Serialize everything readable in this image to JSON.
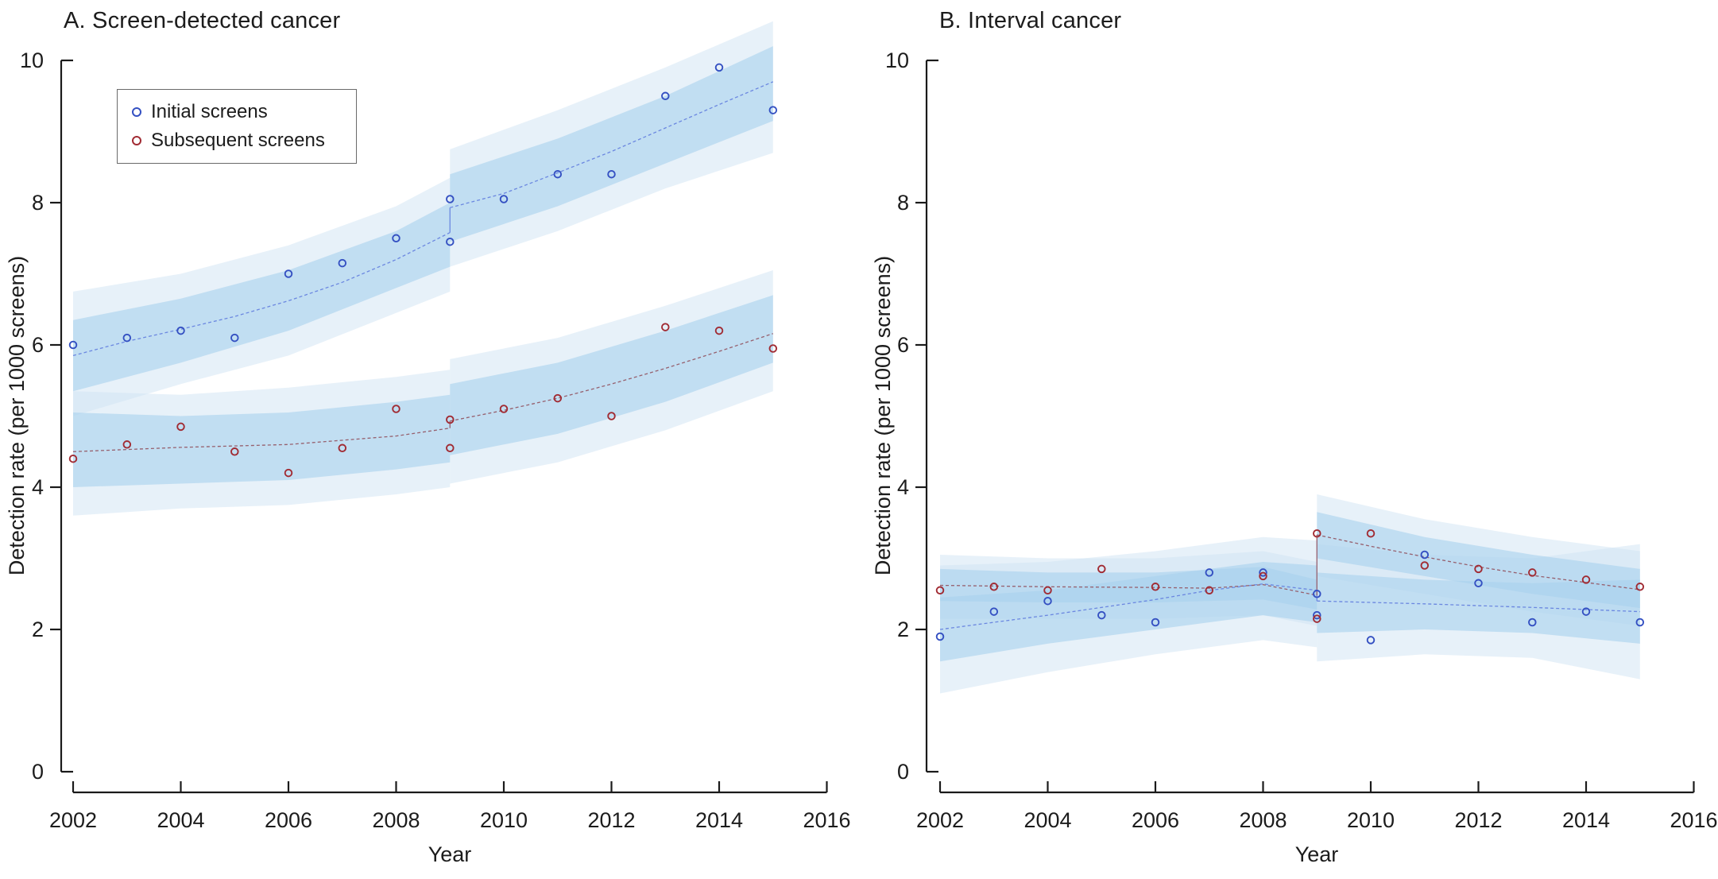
{
  "colors": {
    "initial_marker": "#3450c2",
    "subsequent_marker": "#a12b33",
    "initial_trend": "#6b87e0",
    "subsequent_trend": "#96606e",
    "band_inner": "#a9d2ee",
    "band_outer": "#cfe4f4",
    "axis": "#1a1a1a"
  },
  "legend": {
    "items": [
      {
        "label": "Initial screens",
        "series": "initial"
      },
      {
        "label": "Subsequent screens",
        "series": "subsequent"
      }
    ]
  },
  "chart_data": [
    {
      "type": "scatter",
      "title": "A. Screen-detected cancer",
      "xlabel": "Year",
      "ylabel": "Detection rate (per 1000 screens)",
      "xlim": [
        2002,
        2016
      ],
      "ylim": [
        0,
        10
      ],
      "xticks": [
        2002,
        2004,
        2006,
        2008,
        2010,
        2012,
        2014,
        2016
      ],
      "yticks": [
        0,
        2,
        4,
        6,
        8,
        10
      ],
      "legend_position": "top-left",
      "grid": false,
      "jump_year": 2009,
      "series": [
        {
          "name": "Initial screens",
          "points": [
            [
              2002,
              6.0
            ],
            [
              2003,
              6.1
            ],
            [
              2004,
              6.2
            ],
            [
              2005,
              6.1
            ],
            [
              2006,
              7.0
            ],
            [
              2007,
              7.15
            ],
            [
              2008,
              7.5
            ],
            [
              2009,
              8.05
            ],
            [
              2009,
              7.45
            ],
            [
              2010,
              8.05
            ],
            [
              2011,
              8.4
            ],
            [
              2012,
              8.4
            ],
            [
              2013,
              9.5
            ],
            [
              2014,
              9.9
            ],
            [
              2015,
              9.3
            ]
          ],
          "trend_pre": [
            [
              2002,
              5.85
            ],
            [
              2003,
              6.05
            ],
            [
              2004,
              6.22
            ],
            [
              2005,
              6.4
            ],
            [
              2006,
              6.62
            ],
            [
              2007,
              6.88
            ],
            [
              2008,
              7.2
            ],
            [
              2009,
              7.58
            ]
          ],
          "trend_post": [
            [
              2009,
              7.93
            ],
            [
              2010,
              8.13
            ],
            [
              2011,
              8.42
            ],
            [
              2012,
              8.72
            ],
            [
              2013,
              9.05
            ],
            [
              2014,
              9.38
            ],
            [
              2015,
              9.7
            ]
          ],
          "band_inner_pre": {
            "x": [
              2002,
              2004,
              2006,
              2008,
              2009
            ],
            "lo": [
              5.35,
              5.75,
              6.2,
              6.8,
              7.1
            ],
            "hi": [
              6.35,
              6.65,
              7.05,
              7.6,
              8.0
            ]
          },
          "band_outer_pre": {
            "x": [
              2002,
              2004,
              2006,
              2008,
              2009
            ],
            "lo": [
              5.0,
              5.45,
              5.85,
              6.45,
              6.75
            ],
            "hi": [
              6.75,
              7.0,
              7.4,
              7.95,
              8.35
            ]
          },
          "band_inner_post": {
            "x": [
              2009,
              2011,
              2013,
              2015
            ],
            "lo": [
              7.45,
              7.95,
              8.55,
              9.15
            ],
            "hi": [
              8.4,
              8.9,
              9.5,
              10.2
            ]
          },
          "band_outer_post": {
            "x": [
              2009,
              2011,
              2013,
              2015
            ],
            "lo": [
              7.1,
              7.6,
              8.2,
              8.7
            ],
            "hi": [
              8.75,
              9.3,
              9.9,
              10.55
            ]
          }
        },
        {
          "name": "Subsequent screens",
          "points": [
            [
              2002,
              4.4
            ],
            [
              2003,
              4.6
            ],
            [
              2004,
              4.85
            ],
            [
              2005,
              4.5
            ],
            [
              2006,
              4.2
            ],
            [
              2007,
              4.55
            ],
            [
              2008,
              5.1
            ],
            [
              2009,
              4.95
            ],
            [
              2009,
              4.55
            ],
            [
              2010,
              5.1
            ],
            [
              2011,
              5.25
            ],
            [
              2012,
              5.0
            ],
            [
              2013,
              6.25
            ],
            [
              2014,
              6.2
            ],
            [
              2015,
              5.95
            ]
          ],
          "trend_pre": [
            [
              2002,
              4.5
            ],
            [
              2004,
              4.56
            ],
            [
              2006,
              4.6
            ],
            [
              2008,
              4.72
            ],
            [
              2009,
              4.83
            ]
          ],
          "trend_post": [
            [
              2009,
              4.93
            ],
            [
              2010,
              5.08
            ],
            [
              2011,
              5.25
            ],
            [
              2012,
              5.45
            ],
            [
              2013,
              5.67
            ],
            [
              2014,
              5.91
            ],
            [
              2015,
              6.16
            ]
          ],
          "band_inner_pre": {
            "x": [
              2002,
              2004,
              2006,
              2008,
              2009
            ],
            "lo": [
              4.0,
              4.05,
              4.1,
              4.25,
              4.35
            ],
            "hi": [
              5.05,
              5.0,
              5.05,
              5.2,
              5.3
            ]
          },
          "band_outer_pre": {
            "x": [
              2002,
              2004,
              2006,
              2008,
              2009
            ],
            "lo": [
              3.6,
              3.7,
              3.75,
              3.9,
              4.0
            ],
            "hi": [
              5.35,
              5.3,
              5.4,
              5.55,
              5.65
            ]
          },
          "band_inner_post": {
            "x": [
              2009,
              2011,
              2013,
              2015
            ],
            "lo": [
              4.45,
              4.75,
              5.2,
              5.75
            ],
            "hi": [
              5.45,
              5.75,
              6.2,
              6.7
            ]
          },
          "band_outer_post": {
            "x": [
              2009,
              2011,
              2013,
              2015
            ],
            "lo": [
              4.05,
              4.35,
              4.8,
              5.35
            ],
            "hi": [
              5.8,
              6.1,
              6.55,
              7.05
            ]
          }
        }
      ]
    },
    {
      "type": "scatter",
      "title": "B. Interval cancer",
      "xlabel": "Year",
      "ylabel": "Detection rate (per 1000 screens)",
      "xlim": [
        2002,
        2016
      ],
      "ylim": [
        0,
        10
      ],
      "xticks": [
        2002,
        2004,
        2006,
        2008,
        2010,
        2012,
        2014,
        2016
      ],
      "yticks": [
        0,
        2,
        4,
        6,
        8,
        10
      ],
      "legend_position": "none",
      "grid": false,
      "jump_year": 2009,
      "series": [
        {
          "name": "Initial screens",
          "points": [
            [
              2002,
              1.9
            ],
            [
              2003,
              2.25
            ],
            [
              2004,
              2.4
            ],
            [
              2005,
              2.2
            ],
            [
              2006,
              2.1
            ],
            [
              2007,
              2.8
            ],
            [
              2008,
              2.8
            ],
            [
              2009,
              2.5
            ],
            [
              2009,
              2.2
            ],
            [
              2010,
              1.85
            ],
            [
              2011,
              3.05
            ],
            [
              2012,
              2.65
            ],
            [
              2013,
              2.1
            ],
            [
              2014,
              2.25
            ],
            [
              2015,
              2.1
            ]
          ],
          "trend_pre": [
            [
              2002,
              2.0
            ],
            [
              2003,
              2.1
            ],
            [
              2004,
              2.2
            ],
            [
              2005,
              2.31
            ],
            [
              2006,
              2.42
            ],
            [
              2007,
              2.55
            ],
            [
              2008,
              2.64
            ],
            [
              2009,
              2.55
            ]
          ],
          "trend_post": [
            [
              2009,
              2.4
            ],
            [
              2011,
              2.36
            ],
            [
              2013,
              2.31
            ],
            [
              2015,
              2.25
            ]
          ],
          "band_inner_pre": {
            "x": [
              2002,
              2004,
              2006,
              2008,
              2009
            ],
            "lo": [
              1.55,
              1.8,
              2.0,
              2.2,
              2.1
            ],
            "hi": [
              2.45,
              2.55,
              2.75,
              2.95,
              2.9
            ]
          },
          "band_outer_pre": {
            "x": [
              2002,
              2004,
              2006,
              2008,
              2009
            ],
            "lo": [
              1.1,
              1.4,
              1.65,
              1.85,
              1.75
            ],
            "hi": [
              2.9,
              2.95,
              3.1,
              3.3,
              3.25
            ]
          },
          "band_inner_post": {
            "x": [
              2009,
              2011,
              2013,
              2015
            ],
            "lo": [
              1.95,
              2.0,
              1.95,
              1.8
            ],
            "hi": [
              2.8,
              2.7,
              2.65,
              2.7
            ]
          },
          "band_outer_post": {
            "x": [
              2009,
              2011,
              2013,
              2015
            ],
            "lo": [
              1.55,
              1.65,
              1.6,
              1.3
            ],
            "hi": [
              3.2,
              3.05,
              3.0,
              3.2
            ]
          }
        },
        {
          "name": "Subsequent screens",
          "points": [
            [
              2002,
              2.55
            ],
            [
              2003,
              2.6
            ],
            [
              2004,
              2.55
            ],
            [
              2005,
              2.85
            ],
            [
              2006,
              2.6
            ],
            [
              2007,
              2.55
            ],
            [
              2008,
              2.75
            ],
            [
              2009,
              3.35
            ],
            [
              2009,
              2.15
            ],
            [
              2010,
              3.35
            ],
            [
              2011,
              2.9
            ],
            [
              2012,
              2.85
            ],
            [
              2013,
              2.8
            ],
            [
              2014,
              2.7
            ],
            [
              2015,
              2.6
            ]
          ],
          "trend_pre": [
            [
              2002,
              2.62
            ],
            [
              2004,
              2.6
            ],
            [
              2006,
              2.59
            ],
            [
              2007,
              2.58
            ],
            [
              2008,
              2.63
            ],
            [
              2009,
              2.48
            ]
          ],
          "trend_post": [
            [
              2009,
              3.33
            ],
            [
              2010,
              3.17
            ],
            [
              2011,
              3.02
            ],
            [
              2012,
              2.88
            ],
            [
              2013,
              2.76
            ],
            [
              2014,
              2.66
            ],
            [
              2015,
              2.56
            ]
          ],
          "band_inner_pre": {
            "x": [
              2002,
              2004,
              2006,
              2008,
              2009
            ],
            "lo": [
              2.4,
              2.38,
              2.38,
              2.42,
              2.28
            ],
            "hi": [
              2.85,
              2.8,
              2.8,
              2.88,
              2.7
            ]
          },
          "band_outer_pre": {
            "x": [
              2002,
              2004,
              2006,
              2008,
              2009
            ],
            "lo": [
              2.15,
              2.15,
              2.15,
              2.2,
              2.05
            ],
            "hi": [
              3.05,
              3.0,
              3.0,
              3.1,
              2.95
            ]
          },
          "band_inner_post": {
            "x": [
              2009,
              2011,
              2013,
              2015
            ],
            "lo": [
              3.0,
              2.75,
              2.5,
              2.3
            ],
            "hi": [
              3.65,
              3.3,
              3.05,
              2.85
            ]
          },
          "band_outer_post": {
            "x": [
              2009,
              2011,
              2013,
              2015
            ],
            "lo": [
              2.75,
              2.5,
              2.25,
              2.05
            ],
            "hi": [
              3.9,
              3.55,
              3.3,
              3.1
            ]
          }
        }
      ]
    }
  ]
}
